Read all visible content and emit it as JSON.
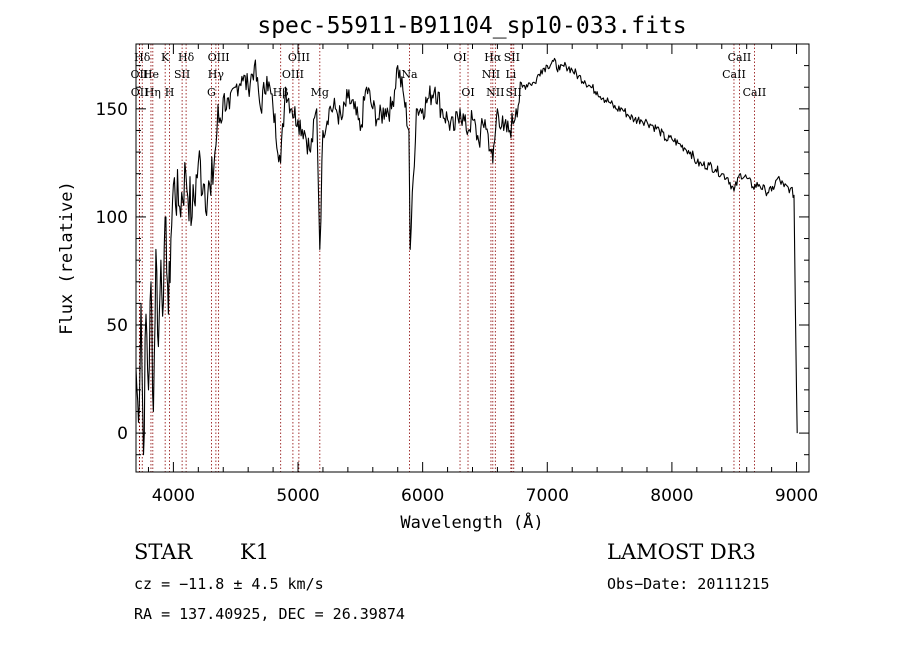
{
  "chart_data": {
    "type": "line",
    "title": "spec-55911-B91104_sp10-033.fits",
    "xlabel": "Wavelength (Å)",
    "ylabel": "Flux (relative)",
    "xlim": [
      3700,
      9100
    ],
    "ylim": [
      -18,
      180
    ],
    "xticks": [
      4000,
      5000,
      6000,
      7000,
      8000,
      9000
    ],
    "yticks": [
      0,
      50,
      100,
      150
    ],
    "grid": false,
    "line_color": "#000000",
    "marker_color": "#8b0000",
    "series": [
      {
        "name": "spectrum",
        "x": [
          3700,
          3720,
          3740,
          3760,
          3780,
          3800,
          3820,
          3840,
          3860,
          3880,
          3900,
          3920,
          3940,
          3960,
          3980,
          4000,
          4050,
          4100,
          4150,
          4200,
          4250,
          4300,
          4350,
          4400,
          4450,
          4500,
          4550,
          4600,
          4650,
          4700,
          4750,
          4800,
          4860,
          4900,
          4950,
          5000,
          5050,
          5100,
          5150,
          5175,
          5200,
          5250,
          5300,
          5350,
          5400,
          5450,
          5500,
          5550,
          5600,
          5650,
          5700,
          5750,
          5800,
          5850,
          5890,
          5900,
          5950,
          6000,
          6050,
          6100,
          6150,
          6200,
          6250,
          6300,
          6350,
          6400,
          6450,
          6500,
          6550,
          6563,
          6600,
          6650,
          6700,
          6750,
          6800,
          6850,
          6900,
          6950,
          7000,
          7050,
          7100,
          7150,
          7200,
          7250,
          7300,
          7350,
          7400,
          7450,
          7500,
          7550,
          7600,
          7650,
          7700,
          7750,
          7800,
          7850,
          7900,
          7950,
          8000,
          8050,
          8100,
          8150,
          8200,
          8250,
          8300,
          8350,
          8400,
          8450,
          8498,
          8550,
          8600,
          8650,
          8700,
          8750,
          8800,
          8850,
          8900,
          8950,
          8980,
          8990,
          9000,
          9005
        ],
        "values": [
          30,
          5,
          60,
          -10,
          55,
          20,
          70,
          10,
          85,
          40,
          80,
          60,
          100,
          55,
          90,
          115,
          105,
          120,
          100,
          125,
          115,
          110,
          140,
          155,
          150,
          160,
          165,
          160,
          170,
          150,
          165,
          150,
          125,
          160,
          150,
          145,
          140,
          130,
          150,
          85,
          140,
          150,
          150,
          145,
          155,
          150,
          140,
          160,
          150,
          145,
          150,
          150,
          170,
          155,
          140,
          85,
          150,
          150,
          155,
          160,
          150,
          145,
          140,
          150,
          140,
          145,
          135,
          145,
          130,
          125,
          150,
          140,
          140,
          150,
          160,
          162,
          162,
          168,
          170,
          172,
          168,
          170,
          168,
          165,
          163,
          160,
          158,
          155,
          153,
          150,
          150,
          147,
          145,
          145,
          144,
          142,
          140,
          136,
          136,
          134,
          132,
          130,
          125,
          124,
          124,
          122,
          120,
          118,
          112,
          120,
          118,
          114,
          115,
          112,
          112,
          118,
          114,
          113,
          110,
          60,
          20,
          0
        ]
      }
    ],
    "line_markers": [
      {
        "label": "Hδ",
        "wavelength": 3750,
        "row": 0
      },
      {
        "label": "OII",
        "wavelength": 3727,
        "row": 1
      },
      {
        "label": "OII",
        "wavelength": 3729,
        "row": 2
      },
      {
        "label": "He",
        "wavelength": 3820,
        "row": 1
      },
      {
        "label": "Hη",
        "wavelength": 3835,
        "row": 2
      },
      {
        "label": "K",
        "wavelength": 3934,
        "row": 0
      },
      {
        "label": "H",
        "wavelength": 3969,
        "row": 2
      },
      {
        "label": "SII",
        "wavelength": 4070,
        "row": 1
      },
      {
        "label": "Hδ",
        "wavelength": 4102,
        "row": 0
      },
      {
        "label": "OIII",
        "wavelength": 4363,
        "row": 0
      },
      {
        "label": "Hγ",
        "wavelength": 4341,
        "row": 1
      },
      {
        "label": "G",
        "wavelength": 4305,
        "row": 2
      },
      {
        "label": "Hβ",
        "wavelength": 4861,
        "row": 2
      },
      {
        "label": "OIII",
        "wavelength": 4959,
        "row": 1
      },
      {
        "label": "OIII",
        "wavelength": 5007,
        "row": 0
      },
      {
        "label": "Mg",
        "wavelength": 5175,
        "row": 2
      },
      {
        "label": "Na",
        "wavelength": 5894,
        "row": 1
      },
      {
        "label": "OI",
        "wavelength": 6300,
        "row": 0
      },
      {
        "label": "OI",
        "wavelength": 6364,
        "row": 2
      },
      {
        "label": "NII",
        "wavelength": 6548,
        "row": 1
      },
      {
        "label": "Hα",
        "wavelength": 6563,
        "row": 0
      },
      {
        "label": "NII",
        "wavelength": 6583,
        "row": 2
      },
      {
        "label": "Li",
        "wavelength": 6708,
        "row": 1
      },
      {
        "label": "SII",
        "wavelength": 6716,
        "row": 0
      },
      {
        "label": "SII",
        "wavelength": 6731,
        "row": 2
      },
      {
        "label": "CaII",
        "wavelength": 8498,
        "row": 1
      },
      {
        "label": "CaII",
        "wavelength": 8542,
        "row": 0
      },
      {
        "label": "CaII",
        "wavelength": 8662,
        "row": 2
      }
    ]
  },
  "info": {
    "class": "STAR",
    "subclass": "K1",
    "survey": "LAMOST DR3",
    "cz": "cz = −11.8 ± 4.5 km/s",
    "obs_date": "Obs−Date: 20111215",
    "coords": "RA = 137.40925, DEC =  26.39874"
  }
}
